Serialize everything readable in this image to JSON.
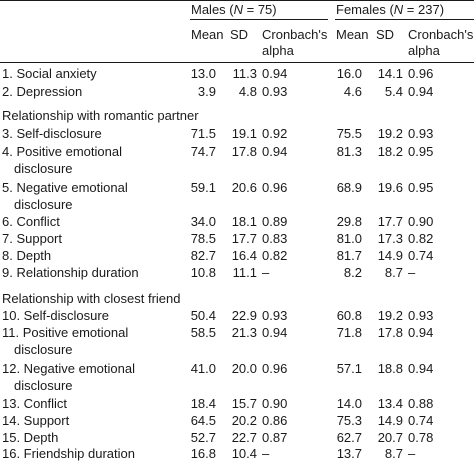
{
  "header": {
    "males_prefix": "Males (",
    "males_n_italic": "N",
    "males_suffix": " = 75)",
    "females_prefix": "Females (",
    "females_n_italic": "N",
    "females_suffix": " = 237)",
    "col_mean": "Mean",
    "col_sd": "SD",
    "col_alpha_line1": "Cronbach's",
    "col_alpha_line2": "alpha"
  },
  "rows_general": [
    {
      "label": "1. Social anxiety",
      "m_mean": "13.0",
      "m_sd": "11.3",
      "m_alpha": "0.94",
      "f_mean": "16.0",
      "f_sd": "14.1",
      "f_alpha": "0.96"
    },
    {
      "label": "2. Depression",
      "m_mean": "3.9",
      "m_sd": "4.8",
      "m_alpha": "0.93",
      "f_mean": "4.6",
      "f_sd": "5.4",
      "f_alpha": "0.94"
    }
  ],
  "section_partner": "Relationship with romantic partner",
  "rows_partner": [
    {
      "label": "3. Self-disclosure",
      "m_mean": "71.5",
      "m_sd": "19.1",
      "m_alpha": "0.92",
      "f_mean": "75.5",
      "f_sd": "19.2",
      "f_alpha": "0.93"
    },
    {
      "label": "4. Positive emotional",
      "label2": "disclosure",
      "m_mean": "74.7",
      "m_sd": "17.8",
      "m_alpha": "0.94",
      "f_mean": "81.3",
      "f_sd": "18.2",
      "f_alpha": "0.95"
    },
    {
      "label": "5. Negative emotional",
      "label2": "disclosure",
      "m_mean": "59.1",
      "m_sd": "20.6",
      "m_alpha": "0.96",
      "f_mean": "68.9",
      "f_sd": "19.6",
      "f_alpha": "0.95"
    },
    {
      "label": "6. Conflict",
      "m_mean": "34.0",
      "m_sd": "18.1",
      "m_alpha": "0.89",
      "f_mean": "29.8",
      "f_sd": "17.7",
      "f_alpha": "0.90"
    },
    {
      "label": "7. Support",
      "m_mean": "78.5",
      "m_sd": "17.7",
      "m_alpha": "0.83",
      "f_mean": "81.0",
      "f_sd": "17.3",
      "f_alpha": "0.82"
    },
    {
      "label": "8. Depth",
      "m_mean": "82.7",
      "m_sd": "16.4",
      "m_alpha": "0.82",
      "f_mean": "81.7",
      "f_sd": "14.9",
      "f_alpha": "0.74"
    },
    {
      "label": "9. Relationship duration",
      "m_mean": "10.8",
      "m_sd": "11.1",
      "m_alpha": "–",
      "f_mean": "8.2",
      "f_sd": "8.7",
      "f_alpha": "–"
    }
  ],
  "section_friend": "Relationship with closest friend",
  "rows_friend": [
    {
      "label": "10. Self-disclosure",
      "m_mean": "50.4",
      "m_sd": "22.9",
      "m_alpha": "0.93",
      "f_mean": "60.8",
      "f_sd": "19.2",
      "f_alpha": "0.93"
    },
    {
      "label": "11. Positive emotional",
      "label2": "disclosure",
      "m_mean": "58.5",
      "m_sd": "21.3",
      "m_alpha": "0.94",
      "f_mean": "71.8",
      "f_sd": "17.8",
      "f_alpha": "0.94"
    },
    {
      "label": "12. Negative emotional",
      "label2": "disclosure",
      "m_mean": "41.0",
      "m_sd": "20.0",
      "m_alpha": "0.96",
      "f_mean": "57.1",
      "f_sd": "18.8",
      "f_alpha": "0.94"
    },
    {
      "label": "13. Conflict",
      "m_mean": "18.4",
      "m_sd": "15.7",
      "m_alpha": "0.90",
      "f_mean": "14.0",
      "f_sd": "13.4",
      "f_alpha": "0.88"
    },
    {
      "label": "14. Support",
      "m_mean": "64.5",
      "m_sd": "20.2",
      "m_alpha": "0.86",
      "f_mean": "75.3",
      "f_sd": "14.9",
      "f_alpha": "0.74"
    },
    {
      "label": "15. Depth",
      "m_mean": "52.7",
      "m_sd": "22.7",
      "m_alpha": "0.87",
      "f_mean": "62.7",
      "f_sd": "20.7",
      "f_alpha": "0.78"
    },
    {
      "label": "16. Friendship duration",
      "m_mean": "16.8",
      "m_sd": "10.4",
      "m_alpha": "–",
      "f_mean": "13.7",
      "f_sd": "8.7",
      "f_alpha": "–"
    }
  ]
}
